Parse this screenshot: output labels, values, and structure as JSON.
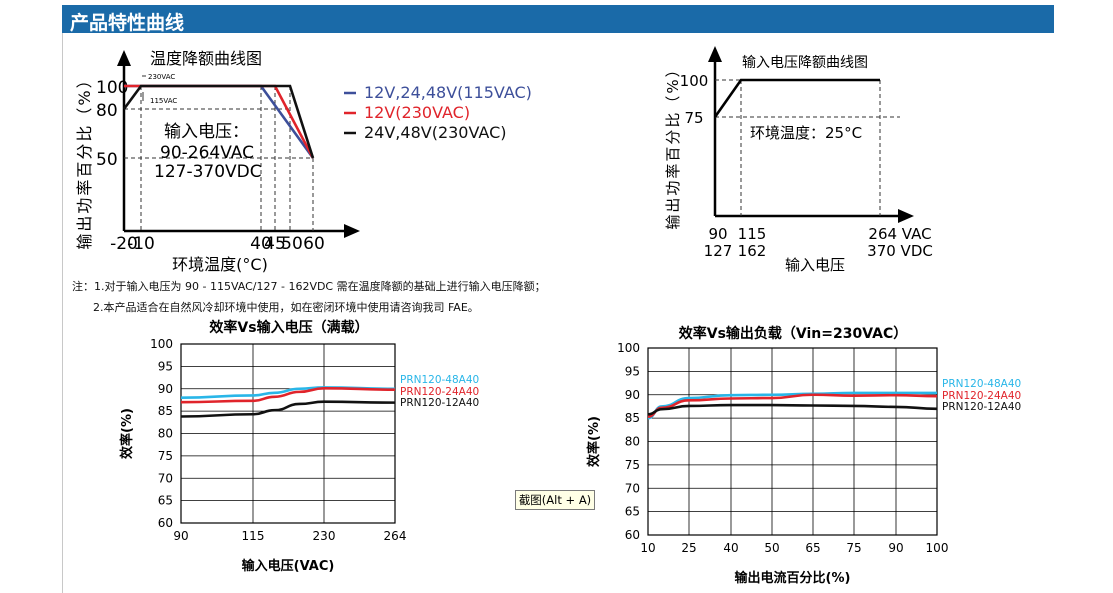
{
  "banner": {
    "title": "产品特性曲线"
  },
  "notes": {
    "line1": "注：1.对于输入电压为 90 - 115VAC/127 - 162VDC 需在温度降额的基础上进行输入电压降额；",
    "line2": "2.本产品适合在自然风冷却环境中使用，如在密闭环境中使用请咨询我司 FAE。"
  },
  "tooltip": {
    "text": "截图(Alt + A)"
  },
  "colors": {
    "banner": "#1a6aa8",
    "blue": "#3d4f9a",
    "red": "#e0242b",
    "black": "#111111",
    "cyan": "#29b6e8",
    "axis": "#000000"
  },
  "chart_data": [
    {
      "type": "line",
      "title": "温度降额曲线图",
      "xlabel": "环境温度(°C)",
      "ylabel": "输出功率百分比（%）",
      "x_ticks": [
        "-20",
        "-10",
        "40",
        "45",
        "50",
        "60"
      ],
      "y_ticks": [
        "50",
        "80",
        "100"
      ],
      "annotations": [
        "230VAC",
        "115VAC",
        "输入电压：",
        "90-264VAC",
        "127-370VDC"
      ],
      "series": [
        {
          "name": "12V,24,48V(115VAC)",
          "color": "#3d4f9a",
          "x": [
            -20,
            40,
            60
          ],
          "y": [
            100,
            100,
            50
          ]
        },
        {
          "name": "12V(230VAC)",
          "color": "#e0242b",
          "x": [
            -20,
            45,
            60
          ],
          "y": [
            100,
            100,
            50
          ]
        },
        {
          "name": "24V,48V(230VAC)",
          "color": "#111111",
          "x": [
            -20,
            -10,
            50,
            60
          ],
          "y": [
            80,
            100,
            100,
            50
          ]
        }
      ]
    },
    {
      "type": "line",
      "title": "输入电压降额曲线图",
      "xlabel": "输入电压",
      "ylabel": "输出功率百分比（%）",
      "x_tick_rows": [
        [
          "90",
          "115",
          "264 VAC"
        ],
        [
          "127",
          "162",
          "370 VDC"
        ]
      ],
      "y_ticks": [
        "75",
        "100"
      ],
      "annotation": "环境温度：25°C",
      "series": [
        {
          "x": [
            90,
            115,
            264
          ],
          "y": [
            75,
            100,
            100
          ]
        }
      ]
    },
    {
      "type": "line",
      "title": "效率Vs输入电压（满载）",
      "xlabel": "输入电压(VAC)",
      "ylabel": "效率(%)",
      "x": [
        90,
        115,
        230,
        264
      ],
      "ylim": [
        60,
        100
      ],
      "y_ticks": [
        60,
        65,
        70,
        75,
        80,
        85,
        90,
        95,
        100
      ],
      "grid": true,
      "legend": "right",
      "series": [
        {
          "name": "PRN120-48A40",
          "color": "#29b6e8",
          "x": [
            90,
            115,
            150,
            190,
            230,
            264
          ],
          "y": [
            88,
            88.5,
            89.1,
            90,
            90.3,
            90
          ]
        },
        {
          "name": "PRN120-24A40",
          "color": "#e0242b",
          "x": [
            90,
            115,
            150,
            190,
            230,
            264
          ],
          "y": [
            87,
            87.3,
            88.2,
            89.3,
            90.1,
            89.8
          ]
        },
        {
          "name": "PRN120-12A40",
          "color": "#111111",
          "x": [
            90,
            115,
            150,
            190,
            230,
            264
          ],
          "y": [
            83.8,
            84.3,
            85.2,
            86.6,
            87.1,
            86.9
          ]
        }
      ]
    },
    {
      "type": "line",
      "title": "效率Vs输出负载（Vin=230VAC）",
      "xlabel": "输出电流百分比(%)",
      "ylabel": "效率(%)",
      "x": [
        10,
        25,
        40,
        50,
        65,
        75,
        90,
        100
      ],
      "ylim": [
        60,
        100
      ],
      "y_ticks": [
        60,
        65,
        70,
        75,
        80,
        85,
        90,
        95,
        100
      ],
      "grid": true,
      "legend": "right",
      "series": [
        {
          "name": "PRN120-48A40",
          "color": "#29b6e8",
          "x": [
            10,
            15,
            25,
            40,
            50,
            65,
            75,
            90,
            100
          ],
          "y": [
            85,
            87.5,
            89.3,
            89.9,
            90,
            90.2,
            90.4,
            90.4,
            90.4
          ]
        },
        {
          "name": "PRN120-24A40",
          "color": "#e0242b",
          "x": [
            10,
            15,
            25,
            40,
            50,
            65,
            75,
            90,
            100
          ],
          "y": [
            85.3,
            87.2,
            88.8,
            89.2,
            89.3,
            90,
            89.8,
            89.9,
            89.7
          ]
        },
        {
          "name": "PRN120-12A40",
          "color": "#111111",
          "x": [
            10,
            15,
            25,
            40,
            50,
            65,
            75,
            90,
            100
          ],
          "y": [
            85.8,
            86.9,
            87.6,
            87.8,
            87.8,
            87.7,
            87.6,
            87.4,
            87
          ]
        }
      ]
    }
  ]
}
